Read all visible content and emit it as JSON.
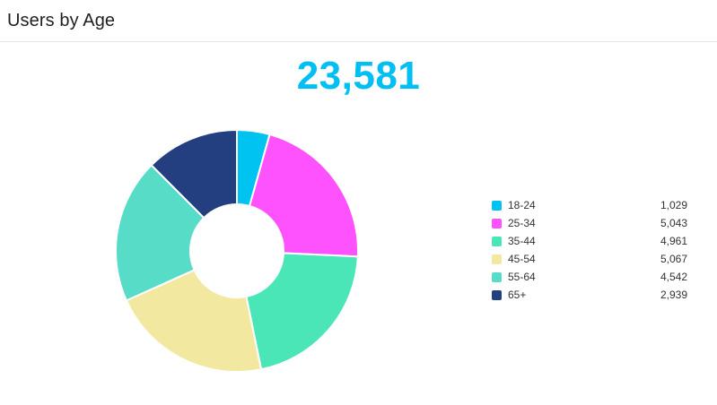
{
  "header": {
    "title": "Users by Age"
  },
  "kpi": {
    "total": "23,581"
  },
  "chart_data": {
    "type": "pie",
    "variant": "donut",
    "title": "",
    "legend_position": "right",
    "categories": [
      "18-24",
      "25-34",
      "35-44",
      "45-54",
      "55-64",
      "65+"
    ],
    "values": [
      1029,
      5043,
      4961,
      5067,
      4542,
      2939
    ],
    "value_labels": [
      "1,029",
      "5,043",
      "4,961",
      "5,067",
      "4,542",
      "2,939"
    ],
    "colors": [
      "#00c3f2",
      "#ff52ff",
      "#4ae6b8",
      "#f2e8a0",
      "#57dcc8",
      "#233f80"
    ]
  }
}
